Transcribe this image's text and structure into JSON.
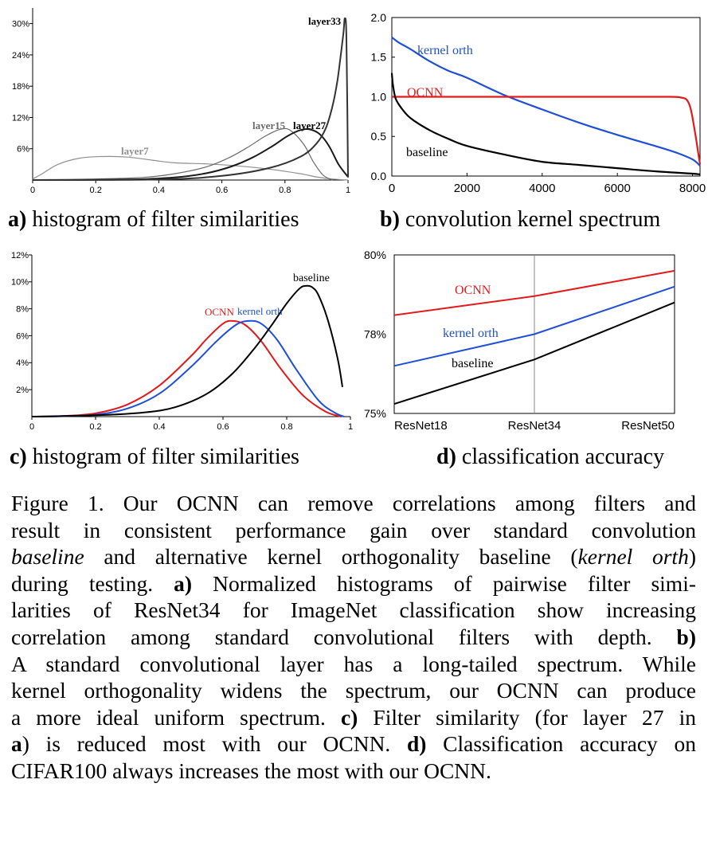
{
  "colors": {
    "ocnn": "#e31a1c",
    "kernel_orth": "#1f4fd8",
    "baseline": "#000000",
    "layer7": "#8f8f8f",
    "layer15": "#6a6a6a",
    "layer27": "#1a1a1a",
    "layer33": "#333333"
  },
  "chart_data": [
    {
      "id": "a",
      "type": "line",
      "xlim": [
        0,
        1
      ],
      "ylim": [
        0,
        33
      ],
      "yunit": "%",
      "xticks": [
        "0",
        "0.2",
        "0.4",
        "0.6",
        "0.8",
        "1"
      ],
      "yticks": [
        "6%",
        "12%",
        "18%",
        "24%",
        "30%"
      ],
      "ytick_values": [
        6,
        12,
        18,
        24,
        30
      ],
      "xtick_values": [
        0,
        0.2,
        0.4,
        0.6,
        0.8,
        1
      ],
      "series": [
        {
          "name": "layer7",
          "x": [
            0,
            0.03,
            0.08,
            0.15,
            0.22,
            0.3,
            0.38,
            0.45,
            0.55,
            0.65,
            0.75,
            0.85,
            0.9,
            0.95,
            1.0
          ],
          "y": [
            0.2,
            1.2,
            3,
            4.2,
            4.5,
            4.4,
            3.8,
            3.3,
            3.1,
            2.7,
            2.1,
            1.2,
            0.6,
            0.2,
            0
          ]
        },
        {
          "name": "layer15",
          "x": [
            0,
            0.2,
            0.35,
            0.45,
            0.55,
            0.62,
            0.68,
            0.74,
            0.79,
            0.82,
            0.86,
            0.89,
            0.92,
            0.95
          ],
          "y": [
            0,
            0.2,
            0.5,
            1.2,
            2.5,
            4.2,
            6.2,
            8.5,
            9.8,
            9.4,
            6.8,
            3.5,
            1,
            0
          ]
        },
        {
          "name": "layer27",
          "x": [
            0,
            0.3,
            0.45,
            0.55,
            0.63,
            0.7,
            0.76,
            0.81,
            0.85,
            0.88,
            0.91,
            0.94,
            0.97,
            1.0
          ],
          "y": [
            0,
            0.1,
            0.5,
            1.3,
            2.6,
            4.4,
            6.5,
            8.5,
            9.6,
            9.7,
            8.8,
            6.5,
            3,
            0.6
          ]
        },
        {
          "name": "layer33",
          "x": [
            0,
            0.4,
            0.6,
            0.75,
            0.85,
            0.9,
            0.93,
            0.95,
            0.965,
            0.975,
            0.985,
            0.99,
            0.995,
            1.0
          ],
          "y": [
            0,
            0.1,
            0.8,
            2.3,
            4.5,
            7,
            10,
            14,
            18.5,
            23,
            28,
            31,
            27,
            0.5
          ]
        }
      ],
      "annotations": [
        "layer7",
        "layer15",
        "layer27",
        "layer33"
      ],
      "caption_label": "a)",
      "caption_text": " histogram of filter similarities"
    },
    {
      "id": "b",
      "type": "line",
      "xlim": [
        0,
        8200
      ],
      "ylim": [
        0,
        2.0
      ],
      "xticks": [
        "0",
        "2000",
        "4000",
        "6000",
        "8000"
      ],
      "xtick_values": [
        0,
        2000,
        4000,
        6000,
        8000
      ],
      "yticks": [
        "0.0",
        "0.5",
        "1.0",
        "1.5",
        "2.0"
      ],
      "ytick_values": [
        0,
        0.5,
        1.0,
        1.5,
        2.0
      ],
      "series": [
        {
          "name": "kernel orth",
          "x": [
            0,
            200,
            500,
            1000,
            1500,
            2000,
            3000,
            4000,
            5000,
            6000,
            7000,
            7600,
            8000,
            8200
          ],
          "y": [
            1.75,
            1.68,
            1.6,
            1.45,
            1.33,
            1.24,
            1.02,
            0.84,
            0.67,
            0.52,
            0.38,
            0.29,
            0.21,
            0.13
          ]
        },
        {
          "name": "OCNN",
          "x": [
            0,
            500,
            1000,
            2000,
            4000,
            6000,
            7400,
            7700,
            7850,
            7950,
            8050,
            8150,
            8200
          ],
          "y": [
            1.0,
            1.0,
            1.0,
            1.0,
            1.0,
            1.0,
            1.0,
            0.99,
            0.96,
            0.85,
            0.6,
            0.3,
            0.15
          ]
        },
        {
          "name": "baseline",
          "x": [
            0,
            30,
            100,
            250,
            500,
            1000,
            1500,
            2000,
            3000,
            4000,
            5000,
            6000,
            7000,
            8000,
            8200
          ],
          "y": [
            1.3,
            1.15,
            0.98,
            0.86,
            0.73,
            0.58,
            0.47,
            0.38,
            0.27,
            0.18,
            0.14,
            0.1,
            0.06,
            0.03,
            0.02
          ]
        }
      ],
      "annotations": [
        "kernel orth",
        "OCNN",
        "baseline"
      ],
      "caption_label": "b)",
      "caption_text": " convolution kernel spectrum"
    },
    {
      "id": "c",
      "type": "line",
      "xlim": [
        0,
        1
      ],
      "ylim": [
        0,
        12
      ],
      "yunit": "%",
      "xticks": [
        "0",
        "0.2",
        "0.4",
        "0.6",
        "0.8",
        "1"
      ],
      "xtick_values": [
        0,
        0.2,
        0.4,
        0.6,
        0.8,
        1
      ],
      "yticks": [
        "2%",
        "4%",
        "6%",
        "8%",
        "10%",
        "12%"
      ],
      "ytick_values": [
        2,
        4,
        6,
        8,
        10,
        12
      ],
      "series": [
        {
          "name": "OCNN",
          "x": [
            0,
            0.1,
            0.2,
            0.3,
            0.4,
            0.5,
            0.55,
            0.6,
            0.63,
            0.67,
            0.72,
            0.78,
            0.85,
            0.92,
            0.97
          ],
          "y": [
            0,
            0.05,
            0.25,
            0.9,
            2.3,
            4.5,
            5.8,
            6.9,
            7.1,
            6.8,
            5.6,
            3.6,
            1.6,
            0.4,
            0
          ]
        },
        {
          "name": "kernel orth",
          "x": [
            0,
            0.1,
            0.2,
            0.3,
            0.4,
            0.5,
            0.58,
            0.64,
            0.68,
            0.72,
            0.77,
            0.83,
            0.9,
            0.95,
            0.98
          ],
          "y": [
            0,
            0.03,
            0.15,
            0.6,
            1.7,
            3.7,
            5.6,
            6.8,
            7.1,
            6.9,
            5.7,
            3.5,
            1.2,
            0.3,
            0
          ]
        },
        {
          "name": "baseline",
          "x": [
            0,
            0.2,
            0.35,
            0.45,
            0.55,
            0.63,
            0.7,
            0.75,
            0.8,
            0.84,
            0.86,
            0.88,
            0.9,
            0.93,
            0.96,
            0.975
          ],
          "y": [
            0,
            0.1,
            0.3,
            0.7,
            1.7,
            3.2,
            5.1,
            6.7,
            8.4,
            9.5,
            9.7,
            9.6,
            9.0,
            7.1,
            4.3,
            2.2
          ]
        }
      ],
      "annotations": [
        "OCNN",
        "kernel orth",
        "baseline"
      ],
      "caption_label": "c)",
      "caption_text": " histogram of filter similarities"
    },
    {
      "id": "d",
      "type": "line",
      "categories": [
        "ResNet18",
        "ResNet34",
        "ResNet50"
      ],
      "ylim": [
        75,
        80
      ],
      "yticks": [
        "75%",
        "78%",
        "80%"
      ],
      "ytick_values": [
        75,
        77.5,
        80
      ],
      "series": [
        {
          "name": "OCNN",
          "values": [
            78.1,
            78.7,
            79.5
          ]
        },
        {
          "name": "kernel orth",
          "values": [
            76.5,
            77.5,
            79.0
          ]
        },
        {
          "name": "baseline",
          "values": [
            75.3,
            76.7,
            78.5
          ]
        }
      ],
      "annotations": [
        "OCNN",
        "kernel orth",
        "baseline"
      ],
      "caption_label": "d)",
      "caption_text": " classification accuracy"
    }
  ],
  "caption": {
    "lines": [
      [
        {
          "t": "Figure 1. Our OCNN can remove correlations among filters and"
        }
      ],
      [
        {
          "t": "result in consistent performance gain over standard convolution"
        }
      ],
      [
        {
          "t": "baseline",
          "s": "i"
        },
        {
          "t": " and alternative kernel orthogonality baseline ("
        },
        {
          "t": "kernel orth",
          "s": "i"
        },
        {
          "t": ")"
        }
      ],
      [
        {
          "t": "during testing.  "
        },
        {
          "t": "a)",
          "s": "b"
        },
        {
          "t": " Normalized histograms of pairwise filter simi-"
        }
      ],
      [
        {
          "t": "larities of ResNet34 for ImageNet classification show increasing"
        }
      ],
      [
        {
          "t": "correlation among standard convolutional filters with depth.  "
        },
        {
          "t": "b)",
          "s": "b"
        }
      ],
      [
        {
          "t": "A standard convolutional layer has a long-tailed spectrum. While"
        }
      ],
      [
        {
          "t": "kernel orthogonality widens the spectrum, our OCNN can produce"
        }
      ],
      [
        {
          "t": "a more ideal uniform spectrum. "
        },
        {
          "t": "c)",
          "s": "b"
        },
        {
          "t": " Filter similarity (for layer 27 in"
        }
      ],
      [
        {
          "t": "a",
          "s": "b"
        },
        {
          "t": ") is reduced most with our OCNN. "
        },
        {
          "t": "d)",
          "s": "b"
        },
        {
          "t": " Classification accuracy on"
        }
      ],
      [
        {
          "t": "CIFAR100 always increases the most with our OCNN."
        }
      ]
    ]
  }
}
